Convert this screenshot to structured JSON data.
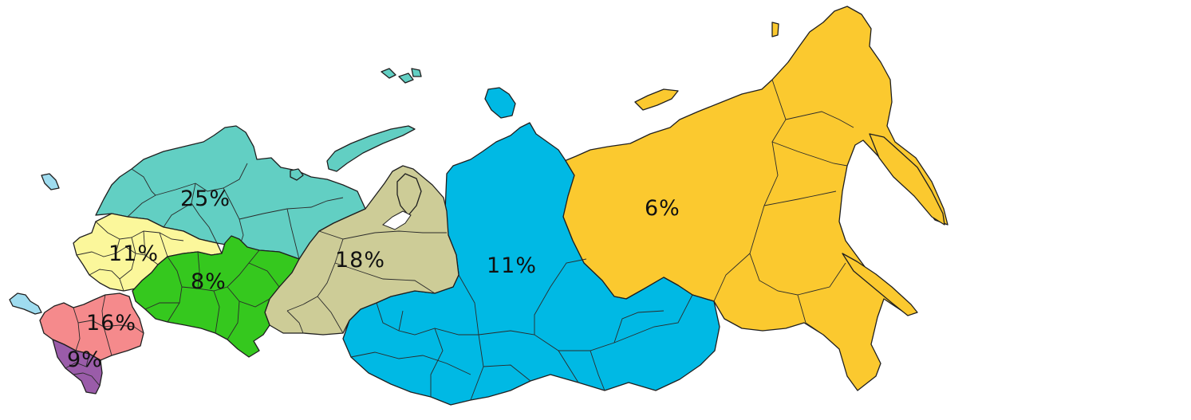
{
  "map": {
    "regions": [
      {
        "id": "northwest",
        "label": "25%",
        "color": "#62cfc3"
      },
      {
        "id": "central",
        "label": "11%",
        "color": "#fbf79b"
      },
      {
        "id": "volga",
        "label": "8%",
        "color": "#35c81e"
      },
      {
        "id": "south",
        "label": "16%",
        "color": "#f58a8c"
      },
      {
        "id": "north-caucasus",
        "label": "9%",
        "color": "#9a5ca9"
      },
      {
        "id": "urals",
        "label": "18%",
        "color": "#cdcc97"
      },
      {
        "id": "siberia",
        "label": "11%",
        "color": "#00b9e4"
      },
      {
        "id": "far-east",
        "label": "6%",
        "color": "#fbc92f"
      }
    ],
    "kaliningrad_color": "#9fdcef"
  }
}
